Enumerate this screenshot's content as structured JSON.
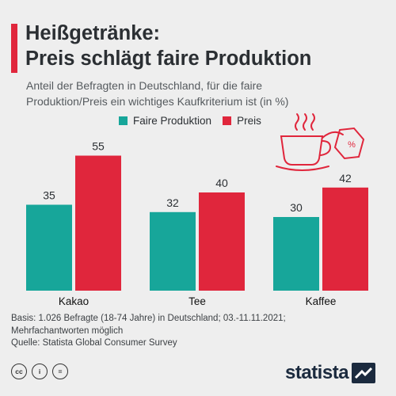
{
  "header": {
    "title_line1": "Heißgetränke:",
    "title_line2": "Preis schlägt faire Produktion",
    "subtitle_line1": "Anteil der Befragten in Deutschland, für die faire",
    "subtitle_line2": "Produktion/Preis ein wichtiges Kaufkriterium ist (in %)",
    "accent_color": "#e0263c"
  },
  "chart_data": {
    "type": "bar",
    "categories": [
      "Kakao",
      "Tee",
      "Kaffee"
    ],
    "series": [
      {
        "name": "Faire Produktion",
        "values": [
          35,
          32,
          30
        ],
        "color": "#17a69a"
      },
      {
        "name": "Preis",
        "values": [
          55,
          40,
          42
        ],
        "color": "#e0263c"
      }
    ],
    "title": "Heißgetränke: Preis schlägt faire Produktion",
    "xlabel": "",
    "ylabel": "",
    "grid": false,
    "legend": "top"
  },
  "footnote": {
    "line1": "Basis: 1.026 Befragte (18-74 Jahre) in Deutschland; 03.-11.11.2021;",
    "line2": "Mehrfachantworten möglich",
    "line3": "Quelle: Statista Global Consumer Survey"
  },
  "branding": {
    "name": "statista",
    "license_icons": [
      "cc-icon",
      "person-icon",
      "equals-icon"
    ],
    "license_labels": [
      "cc",
      "i",
      "="
    ]
  },
  "decoration": {
    "icon": "coffee-cup-price-tag-icon",
    "tag_text": "%"
  }
}
